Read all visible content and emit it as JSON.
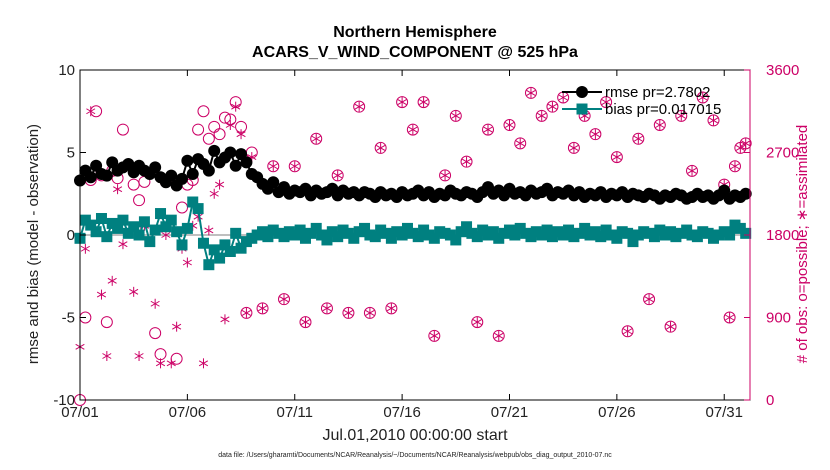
{
  "title_line1": "Northern Hemisphere",
  "title_line2": "ACARS_V_WIND_COMPONENT @ 525 hPa",
  "xlabel": "Jul.01,2010 00:00:00 start",
  "ylabel_left": "rmse and bias (model - observation)",
  "ylabel_right": "# of obs: o=possible; ∗=assimilated",
  "footer": "data file: /Users/gharamti/Documents/NCAR/Reanalysis/~/Documents/NCAR/Reanalysis/webpub/obs_diag_output_2010-07.nc",
  "colors": {
    "rmse": "#000000",
    "bias": "#008080",
    "obs": "#cc0066",
    "zero_line": "#aaaaaa"
  },
  "chart_data": {
    "type": "line",
    "x_ticks": [
      "07/01",
      "07/06",
      "07/11",
      "07/16",
      "07/21",
      "07/26",
      "07/31"
    ],
    "x_tick_days": [
      1,
      6,
      11,
      16,
      21,
      26,
      31
    ],
    "xlim": [
      1,
      32.2
    ],
    "ylim_left": [
      -10,
      10
    ],
    "ylim_right": [
      0,
      3600
    ],
    "y_ticks_left": [
      "10",
      "5",
      "0",
      "-5",
      "-10"
    ],
    "y_tick_values_left": [
      10,
      5,
      0,
      -5,
      -10
    ],
    "y_ticks_right": [
      "3600",
      "2700",
      "1800",
      "900",
      "0"
    ],
    "y_tick_values_right": [
      3600,
      2700,
      1800,
      900,
      0
    ],
    "legend_position": "top-right",
    "series": [
      {
        "name": "rmse pr=2.7802",
        "marker": "circle",
        "axis": "left",
        "x": [
          1.0,
          1.25,
          1.5,
          1.75,
          2.0,
          2.25,
          2.5,
          2.75,
          3.0,
          3.25,
          3.5,
          3.75,
          4.0,
          4.25,
          4.5,
          4.75,
          5.0,
          5.25,
          5.5,
          5.75,
          6.0,
          6.25,
          6.5,
          6.75,
          7.0,
          7.25,
          7.5,
          7.75,
          8.0,
          8.25,
          8.5,
          8.75,
          9.0,
          9.25,
          9.5,
          9.75,
          10.0,
          10.25,
          10.5,
          10.75,
          11.0,
          11.25,
          11.5,
          11.75,
          12.0,
          12.25,
          12.5,
          12.75,
          13.0,
          13.25,
          13.5,
          13.75,
          14.0,
          14.25,
          14.5,
          14.75,
          15.0,
          15.25,
          15.5,
          15.75,
          16.0,
          16.25,
          16.5,
          16.75,
          17.0,
          17.25,
          17.5,
          17.75,
          18.0,
          18.25,
          18.5,
          18.75,
          19.0,
          19.25,
          19.5,
          19.75,
          20.0,
          20.25,
          20.5,
          20.75,
          21.0,
          21.25,
          21.5,
          21.75,
          22.0,
          22.25,
          22.5,
          22.75,
          23.0,
          23.25,
          23.5,
          23.75,
          24.0,
          24.25,
          24.5,
          24.75,
          25.0,
          25.25,
          25.5,
          25.75,
          26.0,
          26.25,
          26.5,
          26.75,
          27.0,
          27.25,
          27.5,
          27.75,
          28.0,
          28.25,
          28.5,
          28.75,
          29.0,
          29.25,
          29.5,
          29.75,
          30.0,
          30.25,
          30.5,
          30.75,
          31.0,
          31.25,
          31.5,
          31.75,
          32.0
        ],
        "y": [
          3.3,
          3.9,
          3.5,
          4.2,
          3.7,
          3.6,
          4.4,
          3.9,
          4.1,
          4.3,
          3.8,
          4.2,
          3.9,
          3.7,
          4.1,
          3.5,
          3.2,
          3.6,
          3.0,
          3.4,
          4.5,
          3.7,
          4.6,
          4.3,
          3.9,
          5.1,
          4.4,
          4.7,
          5.0,
          4.2,
          4.9,
          4.4,
          3.7,
          3.5,
          3.1,
          2.8,
          3.2,
          2.6,
          2.9,
          2.5,
          2.7,
          2.6,
          2.8,
          2.4,
          2.7,
          2.5,
          2.6,
          2.8,
          2.4,
          2.7,
          2.5,
          2.6,
          2.4,
          2.6,
          2.5,
          2.3,
          2.6,
          2.4,
          2.5,
          2.3,
          2.6,
          2.4,
          2.5,
          2.7,
          2.4,
          2.6,
          2.3,
          2.5,
          2.4,
          2.7,
          2.5,
          2.4,
          2.6,
          2.5,
          2.3,
          2.6,
          2.9,
          2.5,
          2.7,
          2.4,
          2.8,
          2.5,
          2.6,
          2.4,
          2.7,
          2.5,
          2.6,
          2.8,
          2.4,
          2.6,
          2.5,
          2.7,
          2.4,
          2.6,
          2.3,
          2.5,
          2.4,
          2.6,
          2.3,
          2.5,
          2.4,
          2.6,
          2.3,
          2.5,
          2.4,
          2.3,
          2.5,
          2.4,
          2.2,
          2.4,
          2.3,
          2.5,
          2.4,
          2.2,
          2.3,
          2.5,
          2.3,
          2.4,
          2.2,
          2.4,
          2.7,
          2.2,
          2.4,
          2.3,
          2.5
        ]
      },
      {
        "name": "bias pr=0.017015",
        "marker": "square",
        "axis": "left",
        "x": [
          1.0,
          1.25,
          1.5,
          1.75,
          2.0,
          2.25,
          2.5,
          2.75,
          3.0,
          3.25,
          3.5,
          3.75,
          4.0,
          4.25,
          4.5,
          4.75,
          5.0,
          5.25,
          5.5,
          5.75,
          6.0,
          6.25,
          6.5,
          6.75,
          7.0,
          7.25,
          7.5,
          7.75,
          8.0,
          8.25,
          8.5,
          8.75,
          9.0,
          9.25,
          9.5,
          9.75,
          10.0,
          10.25,
          10.5,
          10.75,
          11.0,
          11.25,
          11.5,
          11.75,
          12.0,
          12.25,
          12.5,
          12.75,
          13.0,
          13.25,
          13.5,
          13.75,
          14.0,
          14.25,
          14.5,
          14.75,
          15.0,
          15.25,
          15.5,
          15.75,
          16.0,
          16.25,
          16.5,
          16.75,
          17.0,
          17.25,
          17.5,
          17.75,
          18.0,
          18.25,
          18.5,
          18.75,
          19.0,
          19.25,
          19.5,
          19.75,
          20.0,
          20.25,
          20.5,
          20.75,
          21.0,
          21.25,
          21.5,
          21.75,
          22.0,
          22.25,
          22.5,
          22.75,
          23.0,
          23.25,
          23.5,
          23.75,
          24.0,
          24.25,
          24.5,
          24.75,
          25.0,
          25.25,
          25.5,
          25.75,
          26.0,
          26.25,
          26.5,
          26.75,
          27.0,
          27.25,
          27.5,
          27.75,
          28.0,
          28.25,
          28.5,
          28.75,
          29.0,
          29.25,
          29.5,
          29.75,
          30.0,
          30.25,
          30.5,
          30.75,
          31.0,
          31.25,
          31.5,
          31.75,
          32.0
        ],
        "y": [
          -0.2,
          0.9,
          0.6,
          0.2,
          1.0,
          -0.1,
          0.7,
          0.4,
          0.9,
          0.1,
          0.5,
          0.0,
          0.8,
          -0.4,
          0.3,
          1.3,
          0.5,
          0.9,
          0.2,
          -0.6,
          0.4,
          2.0,
          1.6,
          -0.5,
          -1.8,
          -0.9,
          -1.4,
          -0.6,
          -1.0,
          0.1,
          -0.8,
          -0.4,
          -0.2,
          0.0,
          0.2,
          -0.1,
          0.3,
          0.1,
          -0.1,
          0.2,
          0.0,
          0.3,
          -0.2,
          0.1,
          0.4,
          0.0,
          -0.3,
          0.2,
          -0.1,
          0.3,
          0.1,
          -0.2,
          0.2,
          0.4,
          0.0,
          -0.1,
          0.3,
          0.1,
          -0.2,
          0.2,
          0.0,
          0.4,
          0.1,
          -0.1,
          0.3,
          0.0,
          -0.2,
          0.2,
          0.1,
          0.0,
          -0.3,
          0.2,
          0.5,
          0.1,
          -0.1,
          0.3,
          0.0,
          0.2,
          -0.2,
          0.1,
          0.3,
          0.0,
          0.4,
          0.1,
          -0.1,
          0.2,
          0.0,
          0.3,
          -0.1,
          0.2,
          0.0,
          0.3,
          -0.1,
          0.1,
          0.4,
          0.0,
          0.2,
          -0.1,
          0.3,
          0.0,
          -0.2,
          0.2,
          0.1,
          -0.4,
          0.0,
          0.2,
          0.1,
          -0.1,
          0.3,
          0.0,
          0.2,
          -0.1,
          0.1,
          0.3,
          0.0,
          -0.1,
          0.2,
          0.1,
          -0.2,
          0.0,
          0.2,
          0.0,
          0.6,
          0.4,
          0.1
        ]
      },
      {
        "name": "",
        "marker": "open-circle",
        "axis": "right",
        "x": [
          1.0,
          1.25,
          1.5,
          1.75,
          2.0,
          2.25,
          2.5,
          2.75,
          3.0,
          3.5,
          3.75,
          4.0,
          4.5,
          4.75,
          5.0,
          5.25,
          5.5,
          5.75,
          6.0,
          6.25,
          6.5,
          6.75,
          7.0,
          7.25,
          7.5,
          7.75,
          8.0,
          8.25,
          8.5,
          8.75,
          9.0,
          9.5,
          10.0,
          10.5,
          11.0,
          11.5,
          12.0,
          12.5,
          13.0,
          13.5,
          14.0,
          14.5,
          15.0,
          15.5,
          16.0,
          16.5,
          17.0,
          17.5,
          18.0,
          18.5,
          19.0,
          19.5,
          20.0,
          20.5,
          21.0,
          21.5,
          22.0,
          22.5,
          23.0,
          23.5,
          24.0,
          24.5,
          25.0,
          25.5,
          26.0,
          26.5,
          27.0,
          27.5,
          28.0,
          28.5,
          29.0,
          29.5,
          30.0,
          30.5,
          31.0,
          31.25,
          31.5,
          31.75,
          32.0
        ],
        "y": [
          0,
          900,
          2400,
          3150,
          2450,
          850,
          2500,
          2420,
          2950,
          2350,
          2180,
          2380,
          730,
          500,
          2380,
          2420,
          450,
          2100,
          2350,
          2400,
          2950,
          3150,
          2850,
          2980,
          2900,
          3080,
          3060,
          3250,
          2980,
          950,
          2700,
          1000,
          2550,
          1100,
          2550,
          850,
          2850,
          1000,
          2450,
          950,
          3200,
          950,
          2750,
          1000,
          3250,
          2950,
          3250,
          700,
          2450,
          3100,
          2600,
          850,
          2950,
          700,
          3000,
          2800,
          3350,
          3100,
          3200,
          3300,
          2750,
          3100,
          2900,
          3250,
          2650,
          750,
          2850,
          1100,
          3000,
          800,
          3100,
          2500,
          3300,
          3050,
          2350,
          900,
          2550,
          2750,
          2800
        ]
      },
      {
        "name": "",
        "marker": "asterisk",
        "axis": "right",
        "x": [
          1.0,
          1.25,
          1.5,
          1.75,
          2.0,
          2.25,
          2.5,
          2.75,
          3.0,
          3.5,
          3.75,
          4.0,
          4.5,
          4.75,
          5.0,
          5.25,
          5.5,
          5.75,
          6.0,
          6.25,
          6.5,
          6.75,
          7.0,
          7.25,
          7.5,
          7.75,
          8.0,
          8.25,
          8.5,
          8.75,
          9.0,
          9.5,
          10.0,
          10.5,
          11.0,
          11.5,
          12.0,
          12.5,
          13.0,
          13.5,
          14.0,
          14.5,
          15.0,
          15.5,
          16.0,
          16.5,
          17.0,
          17.5,
          18.0,
          18.5,
          19.0,
          19.5,
          20.0,
          20.5,
          21.0,
          21.5,
          22.0,
          22.5,
          23.0,
          23.5,
          24.0,
          24.5,
          25.0,
          25.5,
          26.0,
          26.5,
          27.0,
          27.5,
          28.0,
          28.5,
          29.0,
          29.5,
          30.0,
          30.5,
          31.0,
          31.25,
          31.5,
          31.75,
          32.0
        ],
        "y": [
          580,
          1650,
          3150,
          2450,
          1150,
          480,
          1300,
          2300,
          1700,
          1180,
          480,
          1900,
          1050,
          400,
          1800,
          400,
          800,
          1650,
          1500,
          1900,
          2000,
          400,
          1850,
          2250,
          2350,
          880,
          3000,
          3200,
          2900,
          950,
          2650,
          1000,
          2550,
          1100,
          2550,
          850,
          2850,
          1000,
          2450,
          950,
          3200,
          950,
          2750,
          1000,
          3250,
          2950,
          3250,
          700,
          2450,
          3100,
          2600,
          850,
          2950,
          700,
          3000,
          2800,
          3350,
          3100,
          3200,
          3300,
          2750,
          3100,
          2900,
          3250,
          2650,
          750,
          2850,
          1100,
          3000,
          800,
          3100,
          2500,
          3300,
          3050,
          2350,
          900,
          2550,
          2750,
          2800
        ]
      }
    ]
  }
}
